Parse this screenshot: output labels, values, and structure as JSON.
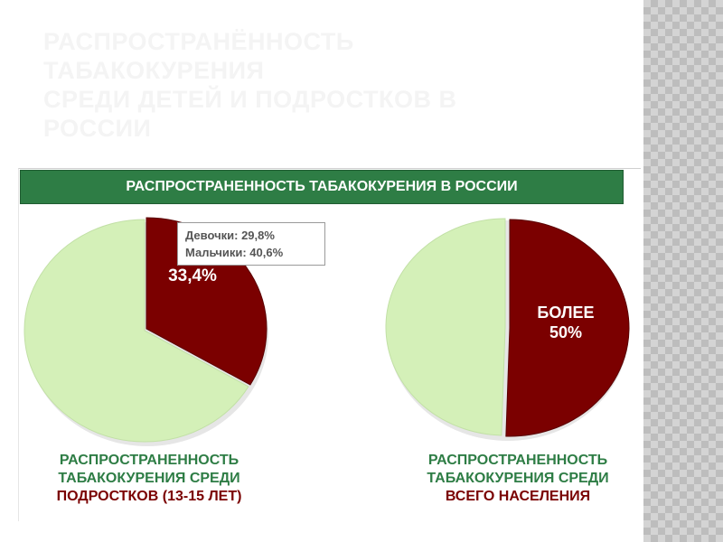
{
  "slide": {
    "title_lines": [
      "РАСПРОСТРАНЁННОСТЬ",
      "ТАБАКОКУРЕНИЯ",
      "СРЕДИ ДЕТЕЙ И ПОДРОСТКОВ В",
      "РОССИИ"
    ]
  },
  "chart_data": [
    {
      "type": "pie",
      "header": "РАСПРОСТРАНЕННОСТЬ ТАБАКОКУРЕНИЯ В РОССИИ",
      "slices": [
        {
          "value": 33.4,
          "label": "33,4%",
          "color": "#7b0000"
        },
        {
          "value": 66.6,
          "label": "",
          "color": "#d4f0b8"
        }
      ],
      "callout": [
        "Девочки: 29,8%",
        "Мальчики: 40,6%"
      ],
      "caption_lines": [
        "РАСПРОСТРАНЕННОСТЬ",
        "ТАБАКОКУРЕНИЯ СРЕДИ"
      ],
      "caption_highlight": "ПОДРОСТКОВ (13-15 ЛЕТ)"
    },
    {
      "type": "pie",
      "slices": [
        {
          "value": 50.5,
          "label": "БОЛЕЕ 50%",
          "label_lines": [
            "БОЛЕЕ",
            "50%"
          ],
          "color": "#7b0000"
        },
        {
          "value": 49.5,
          "label": "",
          "color": "#d4f0b8"
        }
      ],
      "caption_lines": [
        "РАСПРОСТРАНЕННОСТЬ",
        "ТАБАКОКУРЕНИЯ СРЕДИ"
      ],
      "caption_highlight": "ВСЕГО НАСЕЛЕНИЯ"
    }
  ],
  "colors": {
    "header_green": "#2e7d45",
    "slice_dark": "#7b0000",
    "slice_light": "#d4f0b8",
    "caption_red": "#7a0000"
  }
}
